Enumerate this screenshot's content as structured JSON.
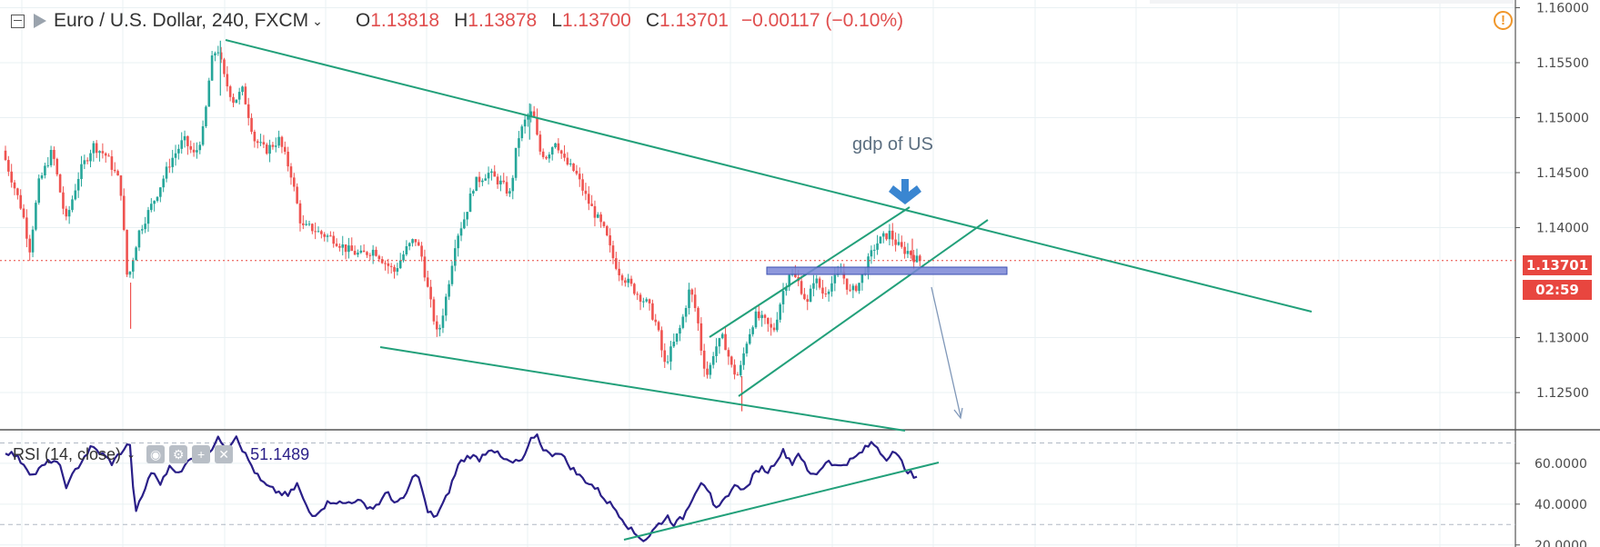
{
  "legend": {
    "symbol": "Euro / U.S. Dollar, 240, FXCM",
    "open_label": "O",
    "open": "1.13818",
    "high_label": "H",
    "high": "1.13878",
    "low_label": "L",
    "low": "1.13700",
    "close_label": "C",
    "close": "1.13701",
    "change": "−0.00117 (−0.10%)"
  },
  "rsi_legend": {
    "label": "RSI (14, close)",
    "value": "51.1489"
  },
  "price_tag": "1.13701",
  "timer_tag": "02:59",
  "annotation": "gdp of US",
  "colors": {
    "up": "#26a69a",
    "down": "#ef5350",
    "trendline": "#22a07a",
    "rsi": "#2a1f88",
    "zone": "#7a86d6",
    "current_price": "#e8463f"
  },
  "chart_data": [
    {
      "type": "candlestick",
      "title": "Euro / U.S. Dollar, 240, FXCM",
      "ylim": [
        1.1217,
        1.1607
      ],
      "y_ticks": [
        "1.16000",
        "1.15500",
        "1.15000",
        "1.14500",
        "1.14000",
        "1.13000",
        "1.12500"
      ],
      "y_tick_values": [
        1.16,
        1.155,
        1.15,
        1.145,
        1.14,
        1.13,
        1.125
      ],
      "current_price": 1.13701,
      "anchors": [
        [
          0,
          1.147
        ],
        [
          10,
          1.1445
        ],
        [
          22,
          1.1415
        ],
        [
          30,
          1.138
        ],
        [
          40,
          1.144
        ],
        [
          55,
          1.147
        ],
        [
          70,
          1.1405
        ],
        [
          85,
          1.145
        ],
        [
          100,
          1.1475
        ],
        [
          115,
          1.1465
        ],
        [
          130,
          1.144
        ],
        [
          138,
          1.135
        ],
        [
          150,
          1.1395
        ],
        [
          170,
          1.143
        ],
        [
          185,
          1.146
        ],
        [
          200,
          1.148
        ],
        [
          212,
          1.1465
        ],
        [
          222,
          1.149
        ],
        [
          230,
          1.155
        ],
        [
          237,
          1.1565
        ],
        [
          245,
          1.1535
        ],
        [
          255,
          1.1515
        ],
        [
          265,
          1.1525
        ],
        [
          278,
          1.148
        ],
        [
          290,
          1.147
        ],
        [
          305,
          1.148
        ],
        [
          318,
          1.145
        ],
        [
          330,
          1.14
        ],
        [
          340,
          1.14
        ],
        [
          350,
          1.1395
        ],
        [
          365,
          1.139
        ],
        [
          380,
          1.138
        ],
        [
          395,
          1.1375
        ],
        [
          410,
          1.138
        ],
        [
          420,
          1.137
        ],
        [
          432,
          1.136
        ],
        [
          445,
          1.138
        ],
        [
          455,
          1.139
        ],
        [
          462,
          1.1375
        ],
        [
          470,
          1.134
        ],
        [
          480,
          1.13
        ],
        [
          490,
          1.134
        ],
        [
          500,
          1.139
        ],
        [
          510,
          1.141
        ],
        [
          520,
          1.144
        ],
        [
          535,
          1.145
        ],
        [
          550,
          1.144
        ],
        [
          560,
          1.143
        ],
        [
          568,
          1.148
        ],
        [
          578,
          1.15
        ],
        [
          585,
          1.1505
        ],
        [
          592,
          1.147
        ],
        [
          600,
          1.1465
        ],
        [
          610,
          1.148
        ],
        [
          620,
          1.146
        ],
        [
          632,
          1.145
        ],
        [
          645,
          1.1425
        ],
        [
          655,
          1.141
        ],
        [
          665,
          1.1395
        ],
        [
          672,
          1.1375
        ],
        [
          680,
          1.136
        ],
        [
          690,
          1.135
        ],
        [
          700,
          1.134
        ],
        [
          712,
          1.133
        ],
        [
          722,
          1.131
        ],
        [
          730,
          1.1275
        ],
        [
          738,
          1.129
        ],
        [
          748,
          1.131
        ],
        [
          758,
          1.1345
        ],
        [
          766,
          1.132
        ],
        [
          772,
          1.128
        ],
        [
          778,
          1.1265
        ],
        [
          785,
          1.129
        ],
        [
          795,
          1.13
        ],
        [
          805,
          1.127
        ],
        [
          812,
          1.1265
        ],
        [
          820,
          1.1295
        ],
        [
          830,
          1.132
        ],
        [
          840,
          1.1315
        ],
        [
          850,
          1.1305
        ],
        [
          860,
          1.134
        ],
        [
          868,
          1.136
        ],
        [
          878,
          1.135
        ],
        [
          888,
          1.133
        ],
        [
          895,
          1.1355
        ],
        [
          905,
          1.134
        ],
        [
          915,
          1.135
        ],
        [
          925,
          1.136
        ],
        [
          935,
          1.134
        ],
        [
          945,
          1.135
        ],
        [
          955,
          1.137
        ],
        [
          963,
          1.1385
        ],
        [
          970,
          1.139
        ],
        [
          978,
          1.1395
        ],
        [
          986,
          1.1385
        ],
        [
          992,
          1.138
        ],
        [
          1000,
          1.1378
        ],
        [
          1006,
          1.1372
        ],
        [
          1010,
          1.137
        ]
      ]
    },
    {
      "type": "line",
      "title": "RSI (14, close)",
      "ylim": [
        19,
        76
      ],
      "y_ticks": [
        "60.0000",
        "40.0000",
        "20.0000"
      ],
      "y_tick_values": [
        60,
        40,
        20
      ],
      "reference_levels": [
        70,
        30
      ],
      "current_value": 51.1489,
      "x_range": [
        0,
        1010
      ],
      "anchors": [
        [
          0,
          66
        ],
        [
          10,
          64
        ],
        [
          20,
          60
        ],
        [
          30,
          54
        ],
        [
          40,
          58
        ],
        [
          52,
          62
        ],
        [
          60,
          58
        ],
        [
          68,
          48
        ],
        [
          75,
          55
        ],
        [
          85,
          62
        ],
        [
          95,
          68
        ],
        [
          108,
          64
        ],
        [
          118,
          60
        ],
        [
          128,
          66
        ],
        [
          138,
          70
        ],
        [
          142,
          36
        ],
        [
          150,
          42
        ],
        [
          160,
          56
        ],
        [
          172,
          50
        ],
        [
          182,
          60
        ],
        [
          192,
          54
        ],
        [
          205,
          64
        ],
        [
          215,
          60
        ],
        [
          225,
          66
        ],
        [
          235,
          72
        ],
        [
          245,
          68
        ],
        [
          255,
          74
        ],
        [
          262,
          66
        ],
        [
          270,
          60
        ],
        [
          280,
          52
        ],
        [
          290,
          48
        ],
        [
          300,
          46
        ],
        [
          312,
          44
        ],
        [
          322,
          50
        ],
        [
          330,
          40
        ],
        [
          338,
          34
        ],
        [
          348,
          38
        ],
        [
          360,
          42
        ],
        [
          372,
          40
        ],
        [
          385,
          42
        ],
        [
          395,
          40
        ],
        [
          405,
          38
        ],
        [
          415,
          42
        ],
        [
          422,
          46
        ],
        [
          430,
          40
        ],
        [
          438,
          42
        ],
        [
          445,
          48
        ],
        [
          452,
          56
        ],
        [
          458,
          50
        ],
        [
          465,
          36
        ],
        [
          475,
          34
        ],
        [
          485,
          42
        ],
        [
          492,
          50
        ],
        [
          500,
          60
        ],
        [
          512,
          64
        ],
        [
          522,
          62
        ],
        [
          535,
          68
        ],
        [
          548,
          62
        ],
        [
          560,
          60
        ],
        [
          572,
          62
        ],
        [
          578,
          70
        ],
        [
          585,
          75
        ],
        [
          592,
          68
        ],
        [
          600,
          64
        ],
        [
          610,
          66
        ],
        [
          620,
          60
        ],
        [
          632,
          54
        ],
        [
          645,
          50
        ],
        [
          655,
          46
        ],
        [
          662,
          42
        ],
        [
          672,
          38
        ],
        [
          682,
          32
        ],
        [
          692,
          26
        ],
        [
          700,
          24
        ],
        [
          705,
          22
        ],
        [
          712,
          26
        ],
        [
          720,
          30
        ],
        [
          730,
          34
        ],
        [
          738,
          30
        ],
        [
          748,
          34
        ],
        [
          758,
          44
        ],
        [
          768,
          52
        ],
        [
          776,
          46
        ],
        [
          782,
          36
        ],
        [
          790,
          40
        ],
        [
          798,
          46
        ],
        [
          808,
          50
        ],
        [
          815,
          46
        ],
        [
          822,
          52
        ],
        [
          832,
          58
        ],
        [
          842,
          56
        ],
        [
          850,
          62
        ],
        [
          858,
          66
        ],
        [
          868,
          60
        ],
        [
          875,
          66
        ],
        [
          884,
          56
        ],
        [
          892,
          54
        ],
        [
          900,
          58
        ],
        [
          908,
          62
        ],
        [
          916,
          58
        ],
        [
          925,
          60
        ],
        [
          935,
          62
        ],
        [
          945,
          66
        ],
        [
          955,
          70
        ],
        [
          962,
          68
        ],
        [
          970,
          62
        ],
        [
          978,
          66
        ],
        [
          986,
          62
        ],
        [
          992,
          58
        ],
        [
          1000,
          54
        ],
        [
          1008,
          51
        ]
      ]
    }
  ]
}
